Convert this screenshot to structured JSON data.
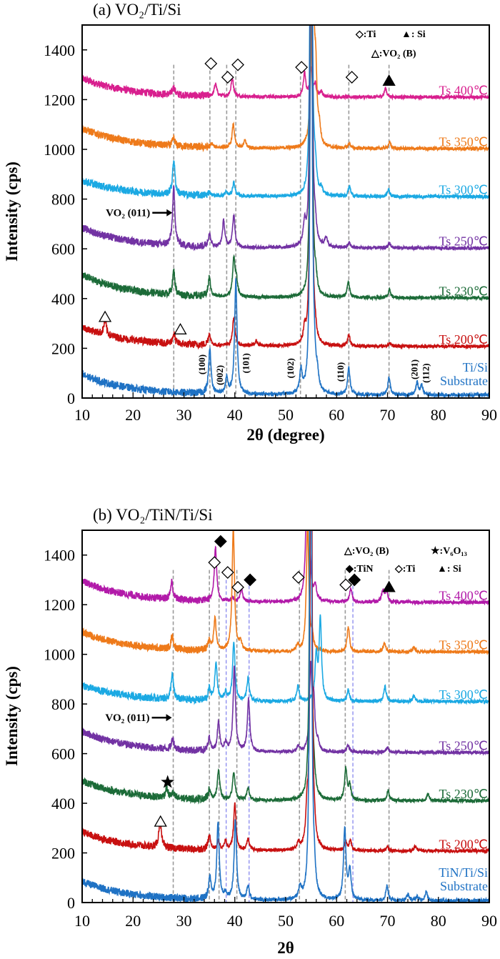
{
  "chart_data": [
    {
      "type": "line",
      "title": "(a) VO₂/Ti/Si",
      "xlabel": "2θ (degree)",
      "ylabel": "Intensity (cps)",
      "xlim": [
        10,
        90
      ],
      "ylim": [
        0,
        1500
      ],
      "xticks": [
        10,
        20,
        30,
        40,
        50,
        60,
        70,
        80,
        90
      ],
      "yticks": [
        0,
        200,
        400,
        600,
        800,
        1000,
        1200,
        1400
      ],
      "grid": false,
      "legend_placement": "top-right",
      "legend": [
        {
          "symbol": "open-diamond",
          "text": "◇:Ti"
        },
        {
          "symbol": "filled-triangle",
          "text": "▲: Si"
        },
        {
          "symbol": "open-triangle",
          "text": "△:VO₂ (B)"
        }
      ],
      "reference_lines": {
        "gray": [
          28.0,
          35.1,
          38.4,
          40.2,
          52.9,
          62.4,
          70.3
        ],
        "blue": []
      },
      "annotation": {
        "text": "VO₂ (011)",
        "arrow_to_x": 28.0,
        "y": 745
      },
      "markers": [
        {
          "symbol": "open-diamond",
          "x": 35.3,
          "y": 1345
        },
        {
          "symbol": "open-diamond",
          "x": 38.6,
          "y": 1290
        },
        {
          "symbol": "open-diamond",
          "x": 40.6,
          "y": 1340
        },
        {
          "symbol": "open-diamond",
          "x": 53.1,
          "y": 1330
        },
        {
          "symbol": "open-diamond",
          "x": 63.0,
          "y": 1290
        },
        {
          "symbol": "filled-triangle",
          "x": 70.3,
          "y": 1275
        },
        {
          "symbol": "open-triangle",
          "x": 14.5,
          "y": 325
        },
        {
          "symbol": "open-triangle",
          "x": 29.3,
          "y": 275
        }
      ],
      "miller_labels": [
        {
          "text": "(100)",
          "x": 33.6,
          "y": 135
        },
        {
          "text": "(002)",
          "x": 37.1,
          "y": 92
        },
        {
          "text": "(101)",
          "x": 42.2,
          "y": 140
        },
        {
          "text": "(102)",
          "x": 51.0,
          "y": 120
        },
        {
          "text": "(110)",
          "x": 60.8,
          "y": 105
        },
        {
          "text": "(201)",
          "x": 75.3,
          "y": 115
        },
        {
          "text": "(112)",
          "x": 77.6,
          "y": 100
        }
      ],
      "series": [
        {
          "name": "Ts 400℃",
          "color": "#d81f8e",
          "baseline": 1210,
          "intensity_at_10": 1285,
          "peaks": [
            [
              28.0,
              30
            ],
            [
              36.2,
              50
            ],
            [
              39.5,
              75
            ],
            [
              53.7,
              95
            ],
            [
              55.0,
              110
            ],
            [
              55.8,
              45
            ],
            [
              57.0,
              20
            ],
            [
              69.6,
              35
            ]
          ]
        },
        {
          "name": "Ts 350℃",
          "color": "#ee7a1a",
          "baseline": 1003,
          "intensity_at_10": 1085,
          "peaks": [
            [
              28.0,
              30
            ],
            [
              35.5,
              15
            ],
            [
              39.7,
              95
            ],
            [
              42.0,
              30
            ],
            [
              55.3,
              900
            ],
            [
              55.9,
              250
            ],
            [
              56.6,
              60
            ],
            [
              62.5,
              20
            ],
            [
              70.4,
              25
            ]
          ]
        },
        {
          "name": "Ts 300℃",
          "color": "#1ba9e3",
          "baseline": 810,
          "intensity_at_10": 875,
          "peaks": [
            [
              28.0,
              140
            ],
            [
              35.0,
              15
            ],
            [
              38.3,
              15
            ],
            [
              39.8,
              55
            ],
            [
              55.0,
              2500
            ],
            [
              55.8,
              90
            ],
            [
              57.0,
              25
            ],
            [
              62.5,
              40
            ],
            [
              70.2,
              30
            ]
          ]
        },
        {
          "name": "Ts 250℃",
          "color": "#7232a3",
          "baseline": 603,
          "intensity_at_10": 685,
          "peaks": [
            [
              28.0,
              230
            ],
            [
              35.0,
              55
            ],
            [
              37.8,
              105
            ],
            [
              39.8,
              130
            ],
            [
              53.7,
              85
            ],
            [
              55.0,
              2500
            ],
            [
              55.8,
              60
            ],
            [
              57.9,
              40
            ],
            [
              62.5,
              20
            ],
            [
              70.4,
              20
            ]
          ]
        },
        {
          "name": "Ts 230℃",
          "color": "#1c6b38",
          "baseline": 403,
          "intensity_at_10": 495,
          "peaks": [
            [
              28.0,
              95
            ],
            [
              35.0,
              75
            ],
            [
              39.8,
              150
            ],
            [
              40.3,
              60
            ],
            [
              55.0,
              2500
            ],
            [
              55.9,
              55
            ],
            [
              62.3,
              65
            ],
            [
              70.4,
              30
            ]
          ]
        },
        {
          "name": "Ts 200℃",
          "color": "#c81010",
          "baseline": 208,
          "intensity_at_10": 285,
          "peaks": [
            [
              14.5,
              60
            ],
            [
              28.0,
              40
            ],
            [
              35.0,
              45
            ],
            [
              39.8,
              115
            ],
            [
              44.2,
              20
            ],
            [
              53.7,
              55
            ],
            [
              55.0,
              2500
            ],
            [
              55.8,
              35
            ],
            [
              62.4,
              45
            ],
            [
              70.5,
              15
            ]
          ]
        },
        {
          "name": "Ti/Si Substrate",
          "label_lines": [
            "Ti/Si",
            "Substrate"
          ],
          "color": "#1f72c4",
          "baseline": 12,
          "intensity_at_10": 95,
          "peaks": [
            [
              35.1,
              180
            ],
            [
              38.4,
              60
            ],
            [
              40.2,
              460
            ],
            [
              53.0,
              90
            ],
            [
              55.0,
              3000
            ],
            [
              55.6,
              90
            ],
            [
              56.2,
              60
            ],
            [
              62.4,
              110
            ],
            [
              70.3,
              70
            ],
            [
              75.8,
              50
            ],
            [
              76.7,
              40
            ]
          ]
        }
      ]
    },
    {
      "type": "line",
      "title": "(b) VO₂/TiN/Ti/Si",
      "xlabel": "2θ",
      "ylabel": "Intensity (cps)",
      "xlim": [
        10,
        90
      ],
      "ylim": [
        0,
        1500
      ],
      "xticks": [
        10,
        20,
        30,
        40,
        50,
        60,
        70,
        80,
        90
      ],
      "yticks": [
        0,
        200,
        400,
        600,
        800,
        1000,
        1200,
        1400
      ],
      "grid": false,
      "legend_placement": "top-right",
      "legend": [
        {
          "symbol": "open-triangle",
          "text": "△:VO₂ (B)"
        },
        {
          "symbol": "star",
          "text": "★:V₆O₁₃"
        },
        {
          "symbol": "filled-diamond",
          "text": "◆:TiN"
        },
        {
          "symbol": "open-diamond",
          "text": "◇:Ti"
        },
        {
          "symbol": "filled-triangle",
          "text": "▲: Si"
        }
      ],
      "reference_lines": {
        "gray": [
          27.9,
          35.0,
          36.9,
          40.4,
          52.7,
          61.7,
          70.3
        ],
        "blue": [
          38.3,
          42.8,
          63.2
        ]
      },
      "annotation": {
        "text": "VO₂ (011)",
        "arrow_to_x": 27.9,
        "y": 745
      },
      "markers": [
        {
          "symbol": "filled-diamond",
          "x": 37.2,
          "y": 1455
        },
        {
          "symbol": "open-diamond",
          "x": 36.0,
          "y": 1370
        },
        {
          "symbol": "open-diamond",
          "x": 38.6,
          "y": 1330
        },
        {
          "symbol": "open-diamond",
          "x": 40.6,
          "y": 1270
        },
        {
          "symbol": "filled-diamond",
          "x": 43.0,
          "y": 1300
        },
        {
          "symbol": "open-diamond",
          "x": 52.5,
          "y": 1310
        },
        {
          "symbol": "open-diamond",
          "x": 61.8,
          "y": 1280
        },
        {
          "symbol": "filled-diamond",
          "x": 63.5,
          "y": 1300
        },
        {
          "symbol": "filled-triangle",
          "x": 70.3,
          "y": 1270
        },
        {
          "symbol": "star",
          "x": 26.8,
          "y": 485
        },
        {
          "symbol": "open-triangle",
          "x": 25.4,
          "y": 325
        }
      ],
      "miller_labels": [],
      "series": [
        {
          "name": "Ts 400℃",
          "color": "#b21aa9",
          "baseline": 1210,
          "intensity_at_10": 1295,
          "peaks": [
            [
              27.6,
              70
            ],
            [
              36.2,
              220
            ],
            [
              39.5,
              15
            ],
            [
              41.3,
              50
            ],
            [
              54.3,
              800
            ],
            [
              55.8,
              55
            ],
            [
              62.8,
              55
            ],
            [
              69.1,
              45
            ],
            [
              69.8,
              45
            ]
          ]
        },
        {
          "name": "Ts 350℃",
          "color": "#ee7a1a",
          "baseline": 1010,
          "intensity_at_10": 1090,
          "peaks": [
            [
              27.7,
              55
            ],
            [
              35.0,
              35
            ],
            [
              36.1,
              130
            ],
            [
              39.7,
              500
            ],
            [
              41.1,
              35
            ],
            [
              52.3,
              25
            ],
            [
              54.3,
              520
            ],
            [
              55.2,
              50
            ],
            [
              62.3,
              100
            ],
            [
              69.4,
              35
            ],
            [
              75.2,
              20
            ]
          ]
        },
        {
          "name": "Ts 300℃",
          "color": "#1ba9e3",
          "baseline": 810,
          "intensity_at_10": 875,
          "peaks": [
            [
              27.7,
              100
            ],
            [
              35.0,
              45
            ],
            [
              36.3,
              150
            ],
            [
              38.2,
              30
            ],
            [
              39.8,
              240
            ],
            [
              42.6,
              90
            ],
            [
              52.4,
              60
            ],
            [
              56.0,
              180
            ],
            [
              56.8,
              330
            ],
            [
              62.3,
              45
            ],
            [
              69.5,
              60
            ],
            [
              75.2,
              25
            ]
          ]
        },
        {
          "name": "Ts 250℃",
          "color": "#7232a3",
          "baseline": 605,
          "intensity_at_10": 690,
          "peaks": [
            [
              27.8,
              45
            ],
            [
              35.0,
              50
            ],
            [
              36.8,
              115
            ],
            [
              38.2,
              30
            ],
            [
              39.9,
              340
            ],
            [
              42.7,
              210
            ],
            [
              52.5,
              25
            ],
            [
              54.9,
              330
            ],
            [
              55.5,
              200
            ],
            [
              56.3,
              30
            ],
            [
              62.3,
              30
            ],
            [
              70.0,
              20
            ]
          ]
        },
        {
          "name": "Ts 230℃",
          "color": "#1c6b38",
          "baseline": 410,
          "intensity_at_10": 490,
          "peaks": [
            [
              26.6,
              40
            ],
            [
              27.8,
              20
            ],
            [
              35.0,
              40
            ],
            [
              36.8,
              120
            ],
            [
              39.8,
              115
            ],
            [
              42.6,
              50
            ],
            [
              54.9,
              2500
            ],
            [
              55.6,
              40
            ],
            [
              61.8,
              130
            ],
            [
              62.6,
              60
            ],
            [
              70.1,
              40
            ],
            [
              78.0,
              30
            ]
          ]
        },
        {
          "name": "Ts 200℃",
          "color": "#c81010",
          "baseline": 208,
          "intensity_at_10": 285,
          "peaks": [
            [
              25.3,
              110
            ],
            [
              35.0,
              60
            ],
            [
              36.8,
              35
            ],
            [
              38.2,
              35
            ],
            [
              40.0,
              190
            ],
            [
              42.6,
              45
            ],
            [
              52.5,
              25
            ],
            [
              54.2,
              145
            ],
            [
              55.0,
              2500
            ],
            [
              55.7,
              35
            ],
            [
              61.8,
              35
            ],
            [
              62.7,
              40
            ],
            [
              70.0,
              15
            ],
            [
              75.5,
              20
            ]
          ]
        },
        {
          "name": "TiN/Ti/Si Substrate",
          "label_lines": [
            "TiN/Ti/Si",
            "Substrate"
          ],
          "color": "#1f72c4",
          "baseline": 8,
          "intensity_at_10": 85,
          "peaks": [
            [
              35.1,
              85
            ],
            [
              36.7,
              310
            ],
            [
              38.2,
              20
            ],
            [
              40.1,
              320
            ],
            [
              42.6,
              55
            ],
            [
              52.8,
              45
            ],
            [
              54.9,
              3000
            ],
            [
              55.6,
              80
            ],
            [
              61.6,
              290
            ],
            [
              62.6,
              120
            ],
            [
              69.9,
              60
            ],
            [
              74.0,
              25
            ],
            [
              75.8,
              15
            ],
            [
              77.6,
              35
            ]
          ]
        }
      ]
    }
  ]
}
